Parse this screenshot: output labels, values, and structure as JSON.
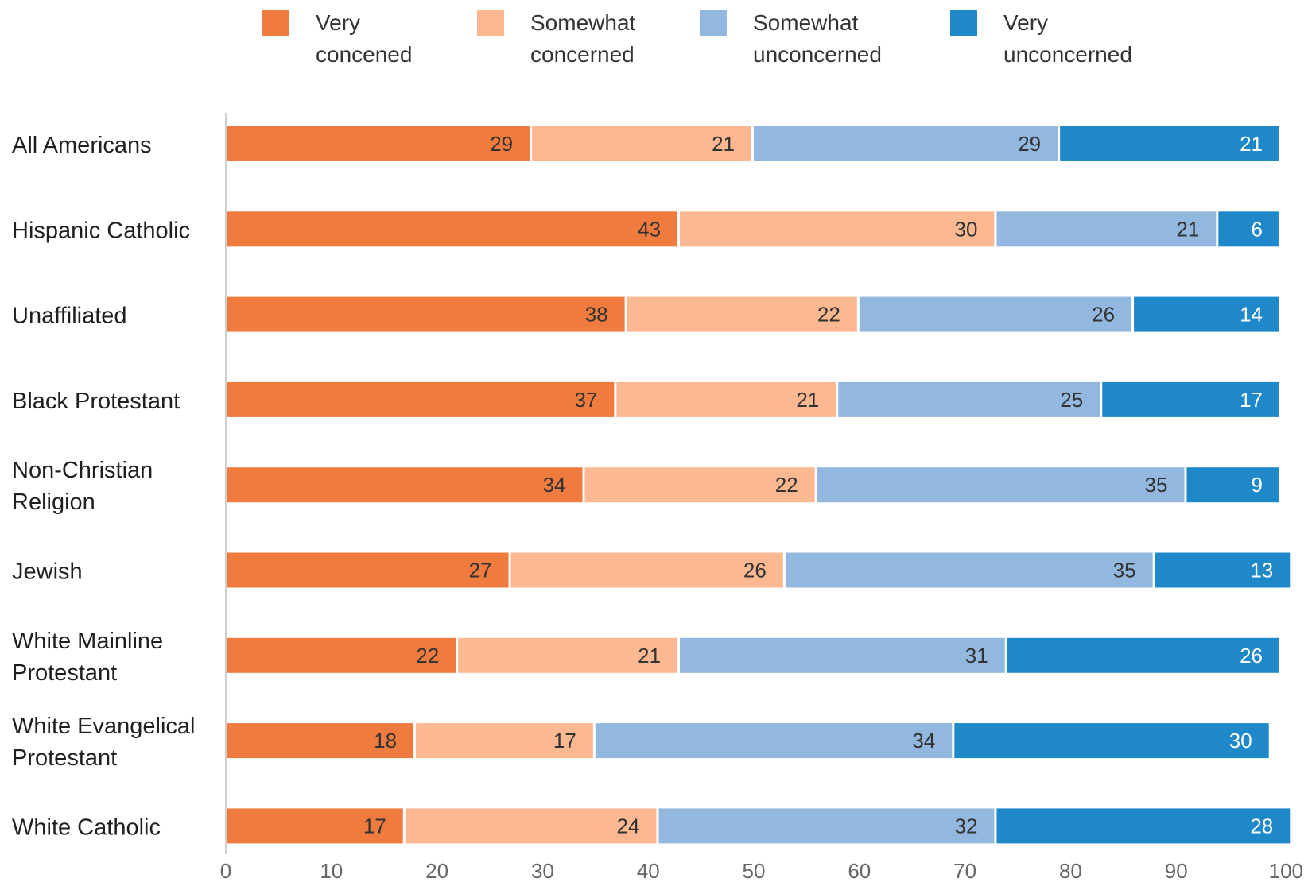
{
  "chart_data": {
    "type": "bar",
    "orientation": "horizontal",
    "stacked": true,
    "title": "",
    "xlabel": "",
    "ylabel": "",
    "xlim": [
      0,
      100
    ],
    "x_ticks": [
      0,
      10,
      20,
      30,
      40,
      50,
      60,
      70,
      80,
      90,
      100
    ],
    "grid": false,
    "legend_position": "top",
    "categories": [
      "All Americans",
      "Hispanic Catholic",
      "Unaffiliated",
      "Black Protestant",
      "Non-Christian Religion",
      "Jewish",
      "White Mainline Protestant",
      "White Evangelical Protestant",
      "White Catholic"
    ],
    "category_lines": [
      [
        "All Americans"
      ],
      [
        "Hispanic Catholic"
      ],
      [
        "Unaffiliated"
      ],
      [
        "Black Protestant"
      ],
      [
        "Non-Christian",
        "Religion"
      ],
      [
        "Jewish"
      ],
      [
        "White Mainline",
        "Protestant"
      ],
      [
        "White Evangelical",
        "Protestant"
      ],
      [
        "White Catholic"
      ]
    ],
    "series": [
      {
        "name": "Very concened",
        "name_lines": [
          "Very",
          "concened"
        ],
        "color": "#f07b3f",
        "label_color": "#333333",
        "values": [
          29,
          43,
          38,
          37,
          34,
          27,
          22,
          18,
          17
        ]
      },
      {
        "name": "Somewhat concerned",
        "name_lines": [
          "Somewhat",
          "concerned"
        ],
        "color": "#fbb891",
        "label_color": "#333333",
        "values": [
          21,
          30,
          22,
          21,
          22,
          26,
          21,
          17,
          24
        ]
      },
      {
        "name": "Somewhat unconcerned",
        "name_lines": [
          "Somewhat",
          "unconcerned"
        ],
        "color": "#93b8e0",
        "label_color": "#333333",
        "values": [
          29,
          21,
          26,
          25,
          35,
          35,
          31,
          34,
          32
        ]
      },
      {
        "name": "Very unconcerned",
        "name_lines": [
          "Very",
          "unconcerned"
        ],
        "color": "#1f88c9",
        "label_color": "#ffffff",
        "values": [
          21,
          6,
          14,
          17,
          9,
          13,
          26,
          30,
          28
        ]
      }
    ]
  }
}
